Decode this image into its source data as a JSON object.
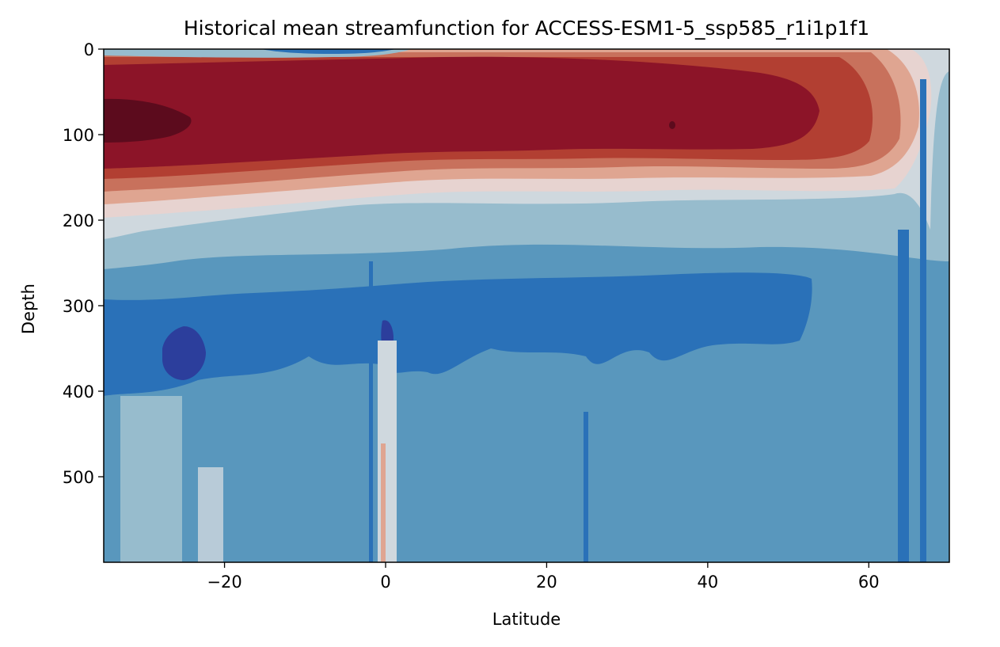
{
  "chart_data": {
    "type": "heatmap",
    "title": "Historical mean streamfunction for ACCESS-ESM1-5_ssp585_r1i1p1f1",
    "xlabel": "Latitude",
    "ylabel": "Depth",
    "xlim": [
      -35,
      70
    ],
    "ylim": [
      600,
      0
    ],
    "y_inverted": true,
    "grid": false,
    "xticks": [
      -20,
      0,
      20,
      40,
      60
    ],
    "xtick_labels": [
      "−20",
      "0",
      "20",
      "40",
      "60"
    ],
    "yticks": [
      0,
      100,
      200,
      300,
      400,
      500
    ],
    "ytick_labels": [
      "0",
      "100",
      "200",
      "300",
      "400",
      "500"
    ],
    "colormap": "diverging blue-white-red (RdBu_r style)",
    "level_colors": [
      "#2c3e9c",
      "#2a71b8",
      "#5997bd",
      "#97bccd",
      "#cfd8de",
      "#e7d3d0",
      "#dfa591",
      "#c8715c",
      "#b23f32",
      "#8c1428",
      "#5c0b1d"
    ],
    "bands": [
      {
        "level": 10,
        "region": "core",
        "lat": [
          -35,
          -24
        ],
        "depth": [
          60,
          110
        ]
      },
      {
        "level": 9,
        "region": "upper-cell",
        "lat": [
          -35,
          51
        ],
        "depth": [
          15,
          160
        ]
      },
      {
        "level": 8,
        "region": "upper-cell",
        "lat": [
          -35,
          54
        ],
        "depth": [
          8,
          175
        ]
      },
      {
        "level": 7,
        "region": "upper-cell",
        "lat": [
          -35,
          57
        ],
        "depth": [
          4,
          190
        ]
      },
      {
        "level": 6,
        "region": "upper-cell",
        "lat": [
          -35,
          62
        ],
        "depth": [
          2,
          210
        ]
      },
      {
        "level": 5,
        "region": "upper-cell",
        "lat": [
          -35,
          65
        ],
        "depth": [
          0,
          230
        ]
      },
      {
        "level": 4,
        "region": "upper-cell",
        "lat": [
          -35,
          67
        ],
        "depth": [
          0,
          255
        ]
      },
      {
        "level": 3,
        "region": "transition",
        "lat": [
          -35,
          70
        ],
        "depth": [
          200,
          290
        ]
      },
      {
        "level": 1,
        "region": "lower-cell",
        "lat": [
          -35,
          55
        ],
        "depth": [
          270,
          430
        ]
      },
      {
        "level": 0,
        "region": "lower-core",
        "lat": [
          -28,
          -22
        ],
        "depth": [
          330,
          390
        ]
      },
      {
        "level": 2,
        "region": "deep",
        "lat": [
          -35,
          70
        ],
        "depth": [
          400,
          600
        ]
      }
    ]
  }
}
